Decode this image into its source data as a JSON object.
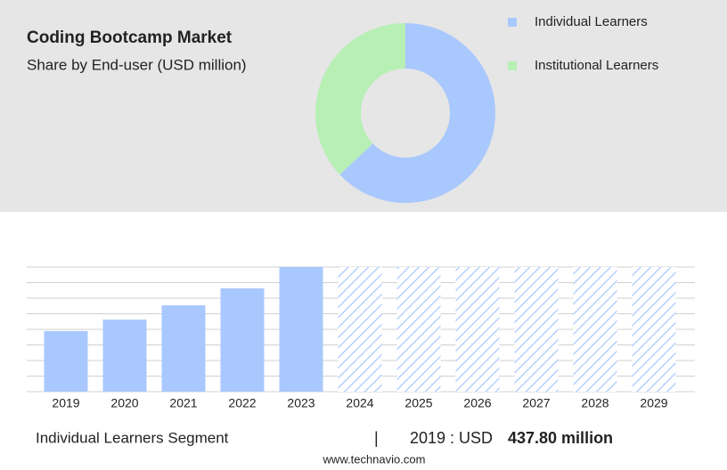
{
  "chart_data": [
    {
      "type": "donut",
      "title": "Coding Bootcamp Market",
      "subtitle": "Share by End-user (USD million)",
      "categories": [
        "Individual Learners",
        "Institutional Learners"
      ],
      "values": [
        63,
        37
      ],
      "colors": [
        "#a9c8fd",
        "#b7efb5"
      ]
    },
    {
      "type": "bar",
      "categories": [
        "2019",
        "2020",
        "2021",
        "2022",
        "2023",
        "2024",
        "2025",
        "2026",
        "2027",
        "2028",
        "2029"
      ],
      "values": [
        437.8,
        521,
        624,
        746,
        900,
        null,
        null,
        null,
        null,
        null,
        null
      ],
      "color": "#a9c8fd",
      "ylim": [
        0,
        900
      ],
      "yticks": [
        0,
        112.5,
        225,
        337.5,
        450,
        562.5,
        675,
        787.5,
        900
      ],
      "grid": true
    }
  ],
  "footer": {
    "segment": "Individual Learners Segment",
    "separator": "|",
    "year_label": "2019 : USD",
    "value": "437.80 million",
    "source": "www.technavio.com"
  }
}
